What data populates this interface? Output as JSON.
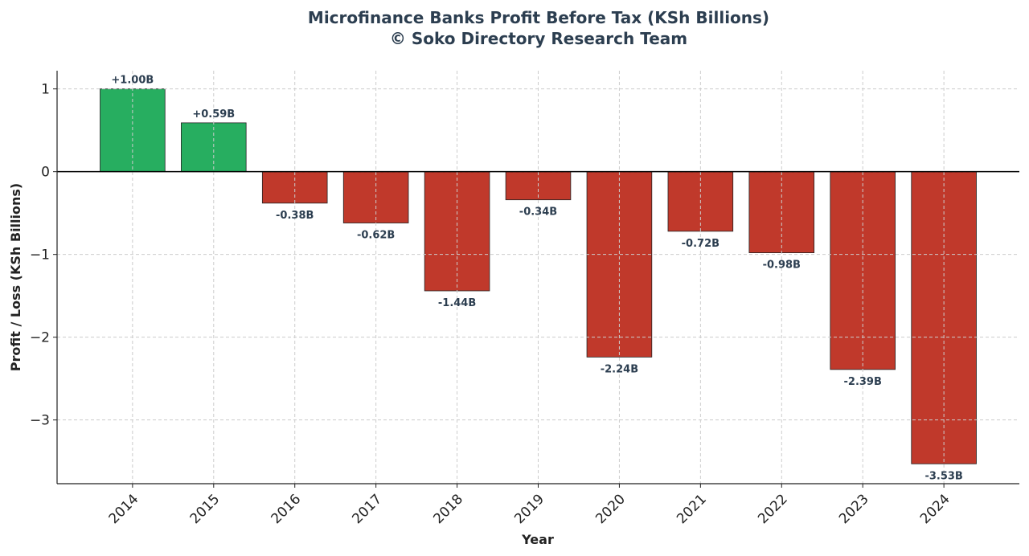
{
  "chart_data": {
    "type": "bar",
    "title": "Microfinance Banks Profit Before Tax (KSh Billions)",
    "subtitle": "© Soko Directory Research Team",
    "xlabel": "Year",
    "ylabel": "Profit / Loss (KSh Billions)",
    "categories": [
      "2014",
      "2015",
      "2016",
      "2017",
      "2018",
      "2019",
      "2020",
      "2021",
      "2022",
      "2023",
      "2024"
    ],
    "values": [
      1.0,
      0.59,
      -0.38,
      -0.62,
      -1.44,
      -0.34,
      -2.24,
      -0.72,
      -0.98,
      -2.39,
      -3.53
    ],
    "data_labels": [
      "+1.00B",
      "+0.59B",
      "-0.38B",
      "-0.62B",
      "-1.44B",
      "-0.34B",
      "-2.24B",
      "-0.72B",
      "-0.98B",
      "-2.39B",
      "-3.53B"
    ],
    "ylim": [
      -3.77,
      1.22
    ],
    "yticks": [
      1,
      0,
      -1,
      -2,
      -3
    ],
    "ytick_labels": [
      "1",
      "0",
      "−1",
      "−2",
      "−3"
    ],
    "grid": true,
    "colors": {
      "positive": "#27ae60",
      "negative": "#c0392b",
      "label": "#2c3e50"
    }
  }
}
